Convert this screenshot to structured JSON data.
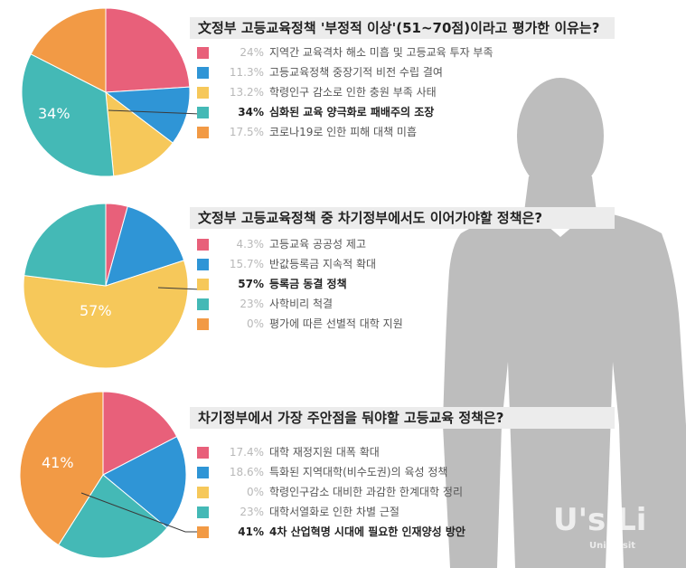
{
  "colors": {
    "pink": "#e8607a",
    "blue": "#2f95d6",
    "yellow": "#f6c85a",
    "teal": "#44b9b6",
    "orange": "#f29a45",
    "silhouette": "#bdbdbd",
    "title_bg": "#ececec"
  },
  "chart_data": [
    {
      "type": "pie",
      "title": "文정부 고등교육정책 '부정적 이상'(51~70점)이라고 평가한 이유는?",
      "slices": [
        {
          "label": "지역간 교육격차 해소 미흡 및 고등교육 투자 부족",
          "value": 24,
          "value_label": "24%",
          "color": "#e8607a"
        },
        {
          "label": "고등교육정책 중장기적 비전 수립 결여",
          "value": 11.3,
          "value_label": "11.3%",
          "color": "#2f95d6"
        },
        {
          "label": "학령인구 감소로 인한 충원 부족 사태",
          "value": 13.2,
          "value_label": "13.2%",
          "color": "#f6c85a"
        },
        {
          "label": "심화된 교육 양극화로 패배주의 조장",
          "value": 34,
          "value_label": "34%",
          "color": "#44b9b6",
          "highlight": true
        },
        {
          "label": "코로나19로 인한 피해 대책 미흡",
          "value": 17.5,
          "value_label": "17.5%",
          "color": "#f29a45"
        }
      ],
      "pie_label": "34%"
    },
    {
      "type": "pie",
      "title": "文정부 고등교육정책 중 차기정부에서도 이어가야할 정책은?",
      "slices": [
        {
          "label": "고등교육 공공성 제고",
          "value": 4.3,
          "value_label": "4.3%",
          "color": "#e8607a"
        },
        {
          "label": "반값등록금 지속적 확대",
          "value": 15.7,
          "value_label": "15.7%",
          "color": "#2f95d6"
        },
        {
          "label": "등록금 동결 정책",
          "value": 57,
          "value_label": "57%",
          "color": "#f6c85a",
          "highlight": true
        },
        {
          "label": "사학비리 척결",
          "value": 23,
          "value_label": "23%",
          "color": "#44b9b6"
        },
        {
          "label": "평가에 따른 선별적 대학 지원",
          "value": 0,
          "value_label": "0%",
          "color": "#f29a45"
        }
      ],
      "pie_label": "57%"
    },
    {
      "type": "pie",
      "title": "차기정부에서 가장 주안점을 둬야할 고등교육 정책은?",
      "slices": [
        {
          "label": "대학 재정지원 대폭 확대",
          "value": 17.4,
          "value_label": "17.4%",
          "color": "#e8607a"
        },
        {
          "label": "특화된 지역대학(비수도권)의 육성 정책",
          "value": 18.6,
          "value_label": "18.6%",
          "color": "#2f95d6"
        },
        {
          "label": "학령인구감소 대비한 과감한 한계대학 정리",
          "value": 0,
          "value_label": "0%",
          "color": "#f6c85a"
        },
        {
          "label": "대학서열화로 인한 차별 근절",
          "value": 23,
          "value_label": "23%",
          "color": "#44b9b6"
        },
        {
          "label": "4차 산업혁명 시대에 필요한 인재양성 방안",
          "value": 41,
          "value_label": "41%",
          "color": "#f29a45",
          "highlight": true
        }
      ],
      "pie_label": "41%"
    }
  ],
  "watermark": {
    "main": "U's Li",
    "sub": "Universit"
  }
}
